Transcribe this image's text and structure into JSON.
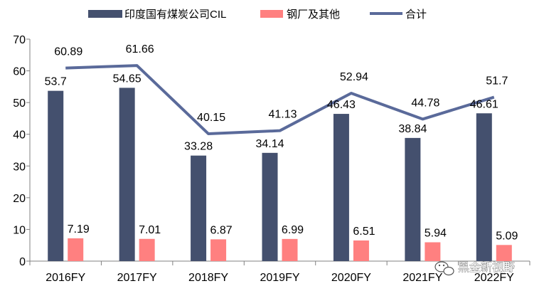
{
  "chart_data": {
    "type": "bar",
    "categories": [
      "2016FY",
      "2017FY",
      "2018FY",
      "2019FY",
      "2020FY",
      "2021FY",
      "2022FY"
    ],
    "series": [
      {
        "name": "印度国有煤炭公司CIL",
        "kind": "bar",
        "color": "#44506e",
        "values": [
          53.7,
          54.65,
          33.28,
          34.14,
          46.43,
          38.84,
          46.61
        ]
      },
      {
        "name": "钢厂及其他",
        "kind": "bar",
        "color": "#ff8080",
        "values": [
          7.19,
          7.01,
          6.87,
          6.99,
          6.51,
          5.94,
          5.09
        ]
      },
      {
        "name": "合计",
        "kind": "line",
        "color": "#5a6a9a",
        "values": [
          60.89,
          61.66,
          40.15,
          41.13,
          52.94,
          44.78,
          51.7
        ]
      }
    ],
    "ylim": [
      0,
      70
    ],
    "yticks": [
      0,
      10,
      20,
      30,
      40,
      50,
      60,
      70
    ],
    "title": "",
    "xlabel": "",
    "ylabel": "",
    "legend_position": "top",
    "grid": false
  },
  "watermark": {
    "text": "黑金新视野",
    "icon": "wechat-icon"
  }
}
